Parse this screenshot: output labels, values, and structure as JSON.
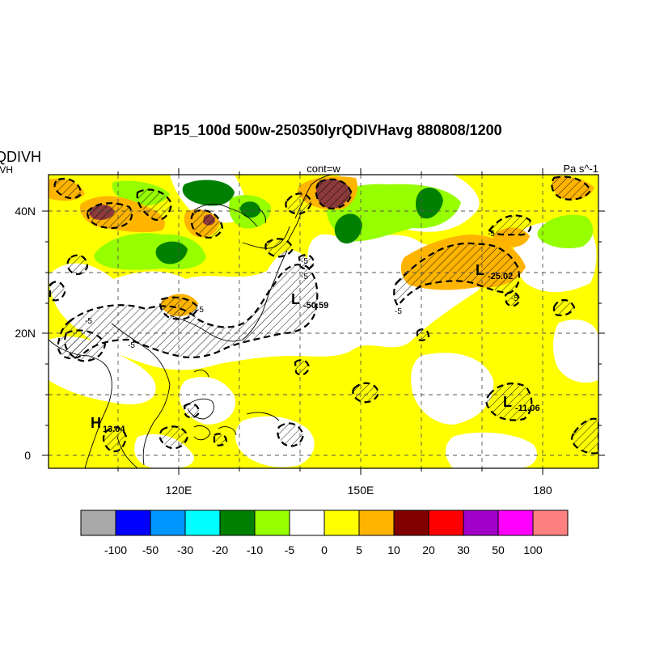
{
  "title": "BP15_100d 500w-250350lyrQDIVHavg  880808/1200",
  "left_title_main": "QDIVH",
  "left_title_sub": "IVH",
  "center_label": "cont=w",
  "units_label": "Pa s^-1",
  "axes": {
    "y_ticks": [
      "40N",
      "20N",
      "0"
    ],
    "x_ticks": [
      "120E",
      "150E",
      "180"
    ]
  },
  "extremes": [
    {
      "letter": "L",
      "value": "-50.59"
    },
    {
      "letter": "L",
      "value": "-25.02"
    },
    {
      "letter": "L",
      "value": "-11.06"
    },
    {
      "letter": "H",
      "value": "13.04"
    }
  ],
  "contour_labels": [
    "-5",
    "-5",
    "-5",
    "-5",
    "-5",
    "-5",
    "-5",
    "-5"
  ],
  "colorbar": {
    "colors": [
      "#a9a9a9",
      "#0000ff",
      "#0096ff",
      "#00ffff",
      "#008000",
      "#96ff00",
      "#ffffff",
      "#ffff00",
      "#ffb400",
      "#800000",
      "#ff0000",
      "#a000c8",
      "#ff00ff",
      "#ff8080"
    ],
    "labels": [
      "-100",
      "-50",
      "-30",
      "-20",
      "-10",
      "-5",
      "0",
      "5",
      "10",
      "20",
      "30",
      "50",
      "100"
    ]
  }
}
